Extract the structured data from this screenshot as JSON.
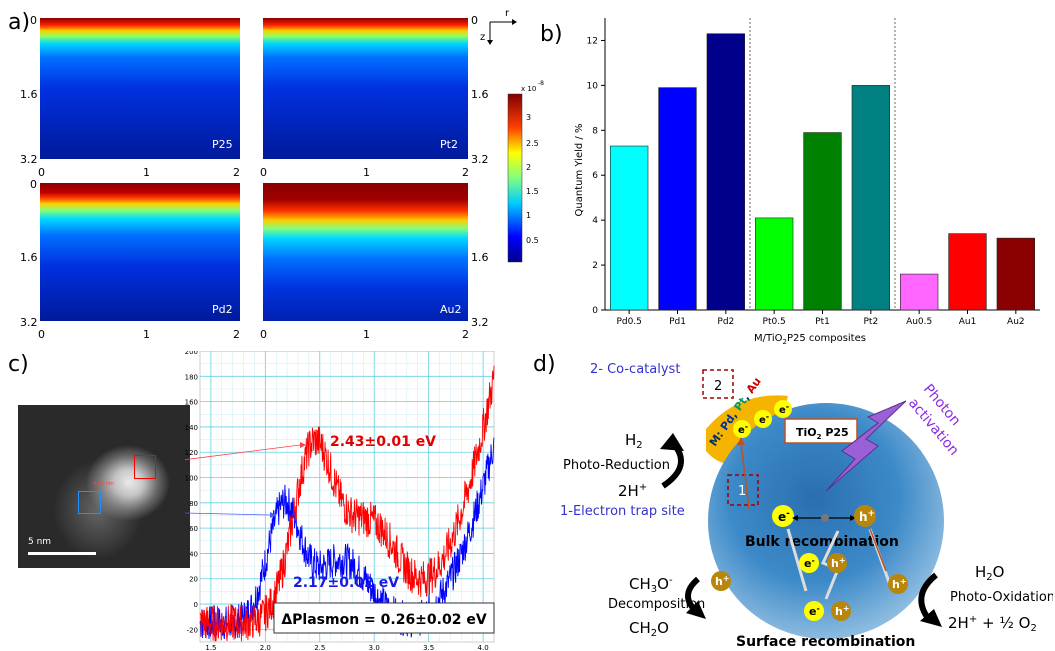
{
  "panels": {
    "a": "a)",
    "b": "b)",
    "c": "c)",
    "d": "d)"
  },
  "panel_a": {
    "maps": [
      {
        "label": "P25",
        "side": "left"
      },
      {
        "label": "Pt2",
        "side": "right"
      },
      {
        "label": "Pd2",
        "side": "left"
      },
      {
        "label": "Au2",
        "side": "right"
      }
    ],
    "y_ticks": [
      "0",
      "1.6",
      "3.2"
    ],
    "x_ticks": [
      "0",
      "1",
      "2"
    ],
    "axis_r": "r",
    "axis_z": "z",
    "colorbar": {
      "exponent": "x 10",
      "exponent_power": "-8",
      "ticks": [
        "3",
        "2.5",
        "2",
        "1.5",
        "1",
        "0.5"
      ]
    }
  },
  "chart_data": [
    {
      "type": "bar",
      "categories": [
        "Pd0.5",
        "Pd1",
        "Pd2",
        "Pt0.5",
        "Pt1",
        "Pt2",
        "Au0.5",
        "Au1",
        "Au2"
      ],
      "values": [
        7.3,
        9.9,
        12.3,
        4.1,
        7.9,
        10.0,
        1.6,
        3.4,
        3.2
      ],
      "colors": [
        "#00ffff",
        "#0000ff",
        "#00008b",
        "#00ff00",
        "#008000",
        "#008080",
        "#ff66ff",
        "#ff0000",
        "#8b0000"
      ],
      "ylabel": "Quantum Yield / %",
      "xlabel_parts": [
        "M/TiO",
        "2",
        "P25 composites"
      ],
      "ylim": [
        0,
        13
      ],
      "yticks": [
        0,
        2,
        4,
        6,
        8,
        10,
        12
      ],
      "group_separators_after": [
        "Pd2",
        "Pt2"
      ]
    },
    {
      "type": "line",
      "series": [
        {
          "name": "2.43±0.01 eV",
          "color": "#ff0000",
          "peak_x": 2.43
        },
        {
          "name": "2.17±0.02 eV",
          "color": "#0000ff",
          "peak_x": 2.17
        }
      ],
      "xlim": [
        1.4,
        4.1
      ],
      "ylim": [
        -30,
        200
      ],
      "xticks": [
        "1.5",
        "2.0",
        "2.5",
        "3.0",
        "3.5",
        "4.0"
      ],
      "yticks": [
        "200",
        "180",
        "160",
        "140",
        "120",
        "100",
        "80",
        "60",
        "40",
        "20",
        "0",
        "-20"
      ],
      "annotation": "ΔPlasmon = 0.26±0.02 eV"
    }
  ],
  "panel_c": {
    "scale_bar": "5 nm",
    "measure": "4.56 nm"
  },
  "panel_d": {
    "cocatalyst": "2- Co-catalyst",
    "trap_site": "1-Electron trap site",
    "box2": "2",
    "box1": "1",
    "metals_prefix": "M: ",
    "metal_pd": "Pd",
    "metal_pt": "Pt",
    "metal_au": "Au",
    "tio2_label": "TiO",
    "tio2_sub": "2",
    "tio2_suffix": " P25",
    "photon": "Photon",
    "activation": "activation",
    "h2": "H",
    "h2_sub": "2",
    "photo_reduction": "Photo-Reduction",
    "two_h_plus": "2H",
    "bulk": "Bulk recombination",
    "surface": "Surface recombination",
    "ch3o": "CH",
    "ch3o_sub": "3",
    "ch3o_suffix": "O",
    "decomposition": "Decomposition",
    "ch2o": "CH",
    "ch2o_sub": "2",
    "ch2o_suffix": "O",
    "h2o": "H",
    "h2o_sub": "2",
    "h2o_suffix": "O",
    "photo_oxidation": "Photo-Oxidation",
    "products_right": "2H",
    "products_right_2": " + ½ O",
    "products_right_sub": "2",
    "electron": "e",
    "hole": "h",
    "minus": "-",
    "plus": "+"
  }
}
